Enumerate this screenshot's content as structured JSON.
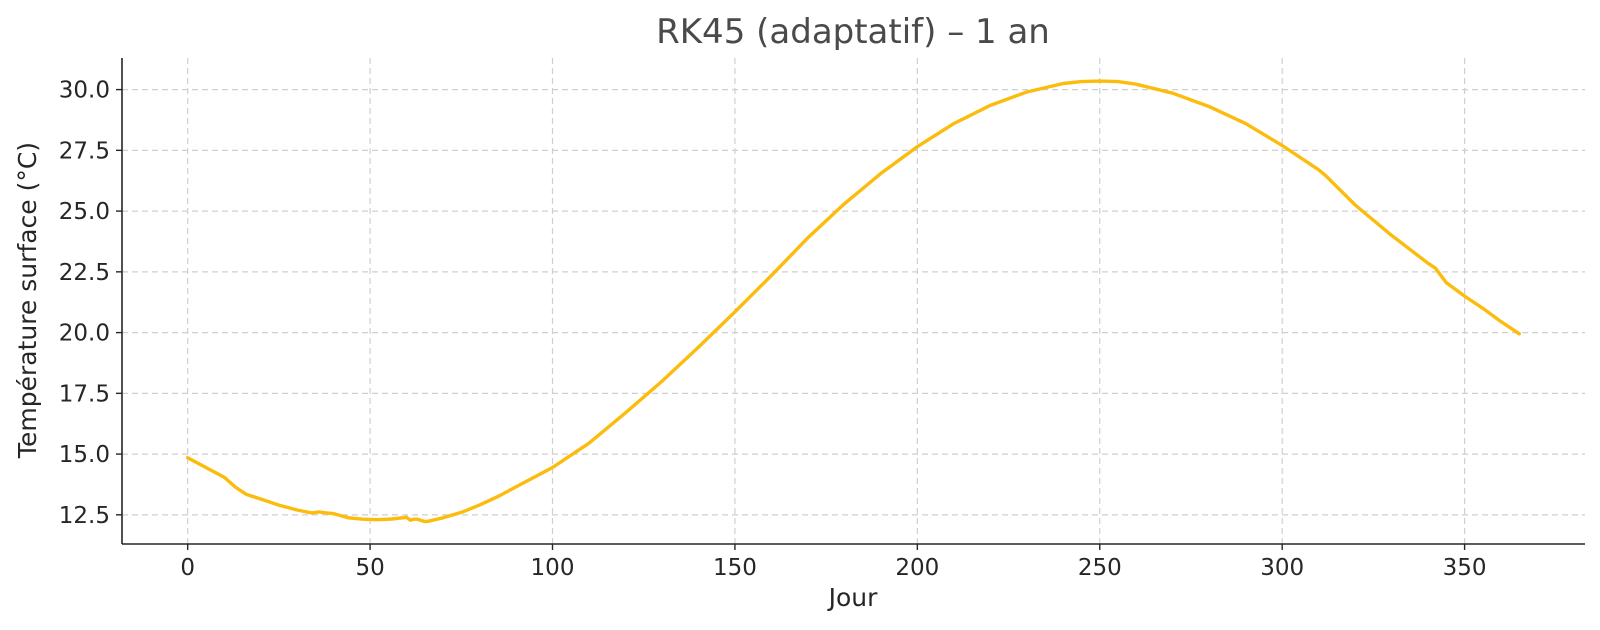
{
  "chart_data": {
    "type": "line",
    "title": "RK45 (adaptatif) – 1 an",
    "xlabel": "Jour",
    "ylabel": "Température surface (°C)",
    "xlim": [
      -18,
      383
    ],
    "ylim": [
      11.3,
      31.3
    ],
    "xticks": [
      0,
      50,
      100,
      150,
      200,
      250,
      300,
      350
    ],
    "yticks": [
      12.5,
      15.0,
      17.5,
      20.0,
      22.5,
      25.0,
      27.5,
      30.0
    ],
    "xtick_labels": [
      "0",
      "50",
      "100",
      "150",
      "200",
      "250",
      "300",
      "350"
    ],
    "ytick_labels": [
      "12.5",
      "15.0",
      "17.5",
      "20.0",
      "22.5",
      "25.0",
      "27.5",
      "30.0"
    ],
    "grid": true,
    "series": [
      {
        "color": "#FBBC0E",
        "x": [
          0,
          5,
          10,
          13,
          16,
          20,
          25,
          30,
          34,
          36,
          38,
          40,
          44,
          48,
          52,
          56,
          60,
          61,
          62,
          63,
          65,
          66,
          70,
          75,
          80,
          85,
          90,
          100,
          110,
          120,
          130,
          140,
          150,
          160,
          170,
          180,
          190,
          200,
          210,
          220,
          230,
          240,
          245,
          250,
          255,
          260,
          270,
          280,
          290,
          300,
          310,
          312,
          315,
          320,
          330,
          340,
          342,
          345,
          350,
          355,
          360,
          365
        ],
        "y": [
          14.85,
          14.45,
          14.05,
          13.65,
          13.35,
          13.15,
          12.9,
          12.7,
          12.58,
          12.62,
          12.58,
          12.55,
          12.38,
          12.32,
          12.3,
          12.33,
          12.4,
          12.28,
          12.32,
          12.32,
          12.22,
          12.24,
          12.38,
          12.6,
          12.9,
          13.25,
          13.65,
          14.45,
          15.45,
          16.7,
          18.0,
          19.4,
          20.85,
          22.35,
          23.9,
          25.3,
          26.55,
          27.65,
          28.6,
          29.35,
          29.9,
          30.25,
          30.33,
          30.35,
          30.33,
          30.22,
          29.85,
          29.3,
          28.6,
          27.7,
          26.7,
          26.45,
          26.0,
          25.25,
          24.0,
          22.85,
          22.65,
          22.05,
          21.5,
          21.0,
          20.45,
          19.95
        ]
      }
    ]
  }
}
